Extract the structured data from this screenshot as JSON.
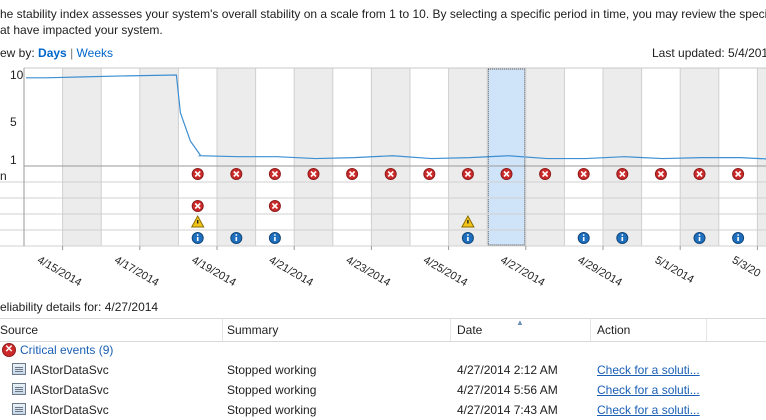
{
  "description": {
    "line1": "he stability index assesses your system's overall stability on a scale from 1 to 10. By selecting a specific period in time, you may review the specific h",
    "line2": "at have impacted your system."
  },
  "view_by": {
    "label": "ew by:",
    "days": "Days",
    "sep": "|",
    "weeks": "Weeks"
  },
  "last_updated": "Last updated: 5/4/201",
  "chart": {
    "y_ticks": [
      "10",
      "5",
      "1"
    ],
    "row_label": "n",
    "dates": [
      "4/15/2014",
      "4/17/2014",
      "4/19/2014",
      "4/21/2014",
      "4/23/2014",
      "4/25/2014",
      "4/27/2014",
      "4/29/2014",
      "5/1/2014",
      "5/3/20"
    ],
    "selected_day_index": 12,
    "colors": {
      "line": "#3d8fd1",
      "shade": "#ececec",
      "selected": "#cfe4f9",
      "error": "#cc2a2a",
      "warning": "#f0c419",
      "info": "#1f6fbf"
    }
  },
  "chart_data": {
    "type": "line",
    "days": [
      "4/14/2014",
      "4/15/2014",
      "4/16/2014",
      "4/17/2014",
      "4/18/2014",
      "4/19/2014",
      "4/20/2014",
      "4/21/2014",
      "4/22/2014",
      "4/23/2014",
      "4/24/2014",
      "4/25/2014",
      "4/26/2014",
      "4/27/2014",
      "4/28/2014",
      "4/29/2014",
      "4/30/2014",
      "5/1/2014",
      "5/2/2014",
      "5/3/2014"
    ],
    "stability_index": [
      9.7,
      9.8,
      9.9,
      10.0,
      1.5,
      1.3,
      1.2,
      1.2,
      1.2,
      1.3,
      1.2,
      1.2,
      1.3,
      1.2,
      1.1,
      1.2,
      1.2,
      1.2,
      1.1,
      1.1
    ],
    "ylim": [
      1,
      10
    ],
    "event_rows": {
      "application_failures": [
        4,
        5,
        6,
        7,
        8,
        9,
        10,
        11,
        12,
        13,
        14,
        15,
        16,
        17,
        18,
        19
      ],
      "windows_failures": [
        4,
        6
      ],
      "warnings": [
        4,
        11
      ],
      "information": [
        4,
        5,
        6,
        11,
        14,
        15,
        17,
        18,
        19
      ]
    }
  },
  "details_label": "eliability details for: 4/27/2014",
  "columns": {
    "source": "Source",
    "summary": "Summary",
    "date": "Date",
    "action": "Action"
  },
  "group": {
    "label": "Critical events (9)"
  },
  "rows": [
    {
      "source": "IAStorDataSvc",
      "summary": "Stopped working",
      "date": "4/27/2014 2:12 AM",
      "action": "Check for a soluti..."
    },
    {
      "source": "IAStorDataSvc",
      "summary": "Stopped working",
      "date": "4/27/2014 5:56 AM",
      "action": "Check for a soluti..."
    },
    {
      "source": "IAStorDataSvc",
      "summary": "Stopped working",
      "date": "4/27/2014 7:43 AM",
      "action": "Check for a soluti..."
    }
  ]
}
